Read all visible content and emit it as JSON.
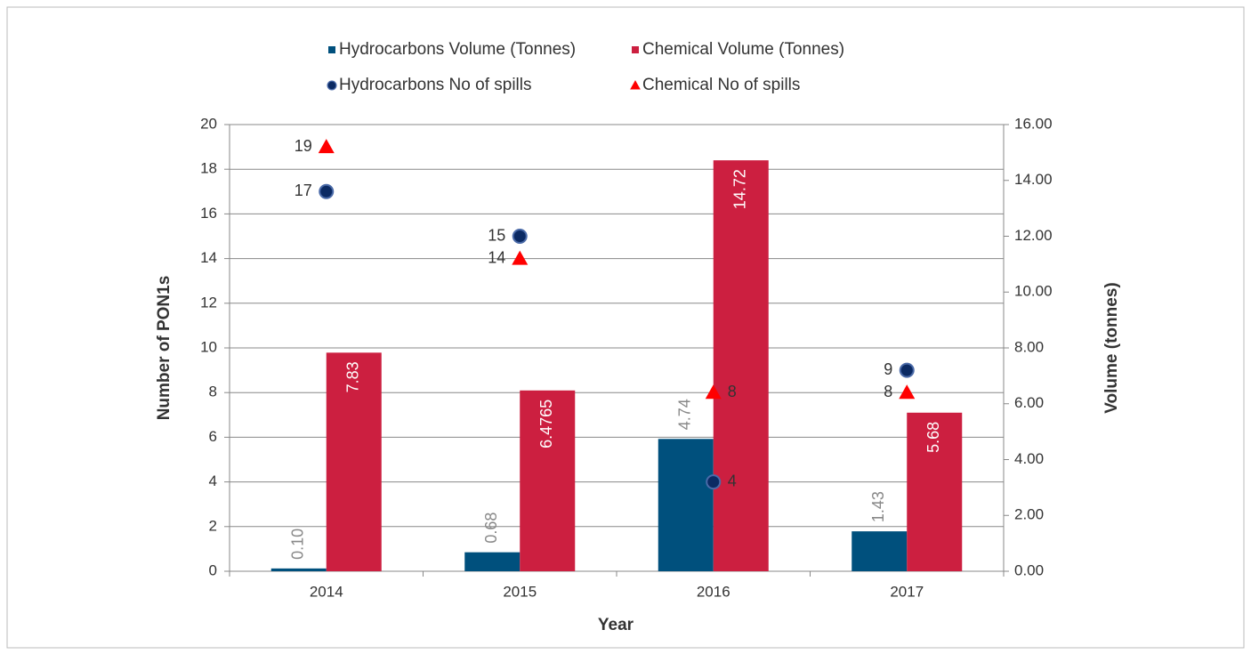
{
  "chart_data": {
    "type": "bar",
    "categories": [
      "2014",
      "2015",
      "2016",
      "2017"
    ],
    "x_label": "Year",
    "y_label": "Number of PON1s",
    "y2_label": "Volume (tonnes)",
    "ylim": [
      0,
      20
    ],
    "yticks": [
      0,
      2,
      4,
      6,
      8,
      10,
      12,
      14,
      16,
      18,
      20
    ],
    "y2lim": [
      0,
      16
    ],
    "y2ticks": [
      {
        "value": 0,
        "label": "0.00"
      },
      {
        "value": 2,
        "label": "2.00"
      },
      {
        "value": 4,
        "label": "4.00"
      },
      {
        "value": 6,
        "label": "6.00"
      },
      {
        "value": 8,
        "label": "8.00"
      },
      {
        "value": 10,
        "label": "10.00"
      },
      {
        "value": 12,
        "label": "12.00"
      },
      {
        "value": 14,
        "label": "14.00"
      },
      {
        "value": 16,
        "label": "16.00"
      }
    ],
    "grid": true,
    "legend": "top",
    "series": [
      {
        "name": "Hydrocarbons Volume (Tonnes)",
        "type": "bar",
        "axis": "y2",
        "color": "#00507d",
        "values": [
          0.1,
          0.68,
          4.74,
          1.43
        ],
        "value_labels": [
          "0.10",
          "0.68",
          "4.74",
          "1.43"
        ]
      },
      {
        "name": "Chemical Volume (Tonnes)",
        "type": "bar",
        "axis": "y2",
        "color": "#cc1f40",
        "values": [
          7.83,
          6.4765,
          14.72,
          5.68
        ]
      },
      {
        "name": "Hydrocarbons No of spills",
        "type": "scatter",
        "marker": "circle",
        "color": "#0b2a63",
        "values": [
          17,
          15,
          4,
          9
        ]
      },
      {
        "name": "Chemical No of spills",
        "type": "scatter",
        "marker": "triangle",
        "color": "#ff0000",
        "values": [
          19,
          14,
          8,
          8
        ]
      }
    ]
  }
}
